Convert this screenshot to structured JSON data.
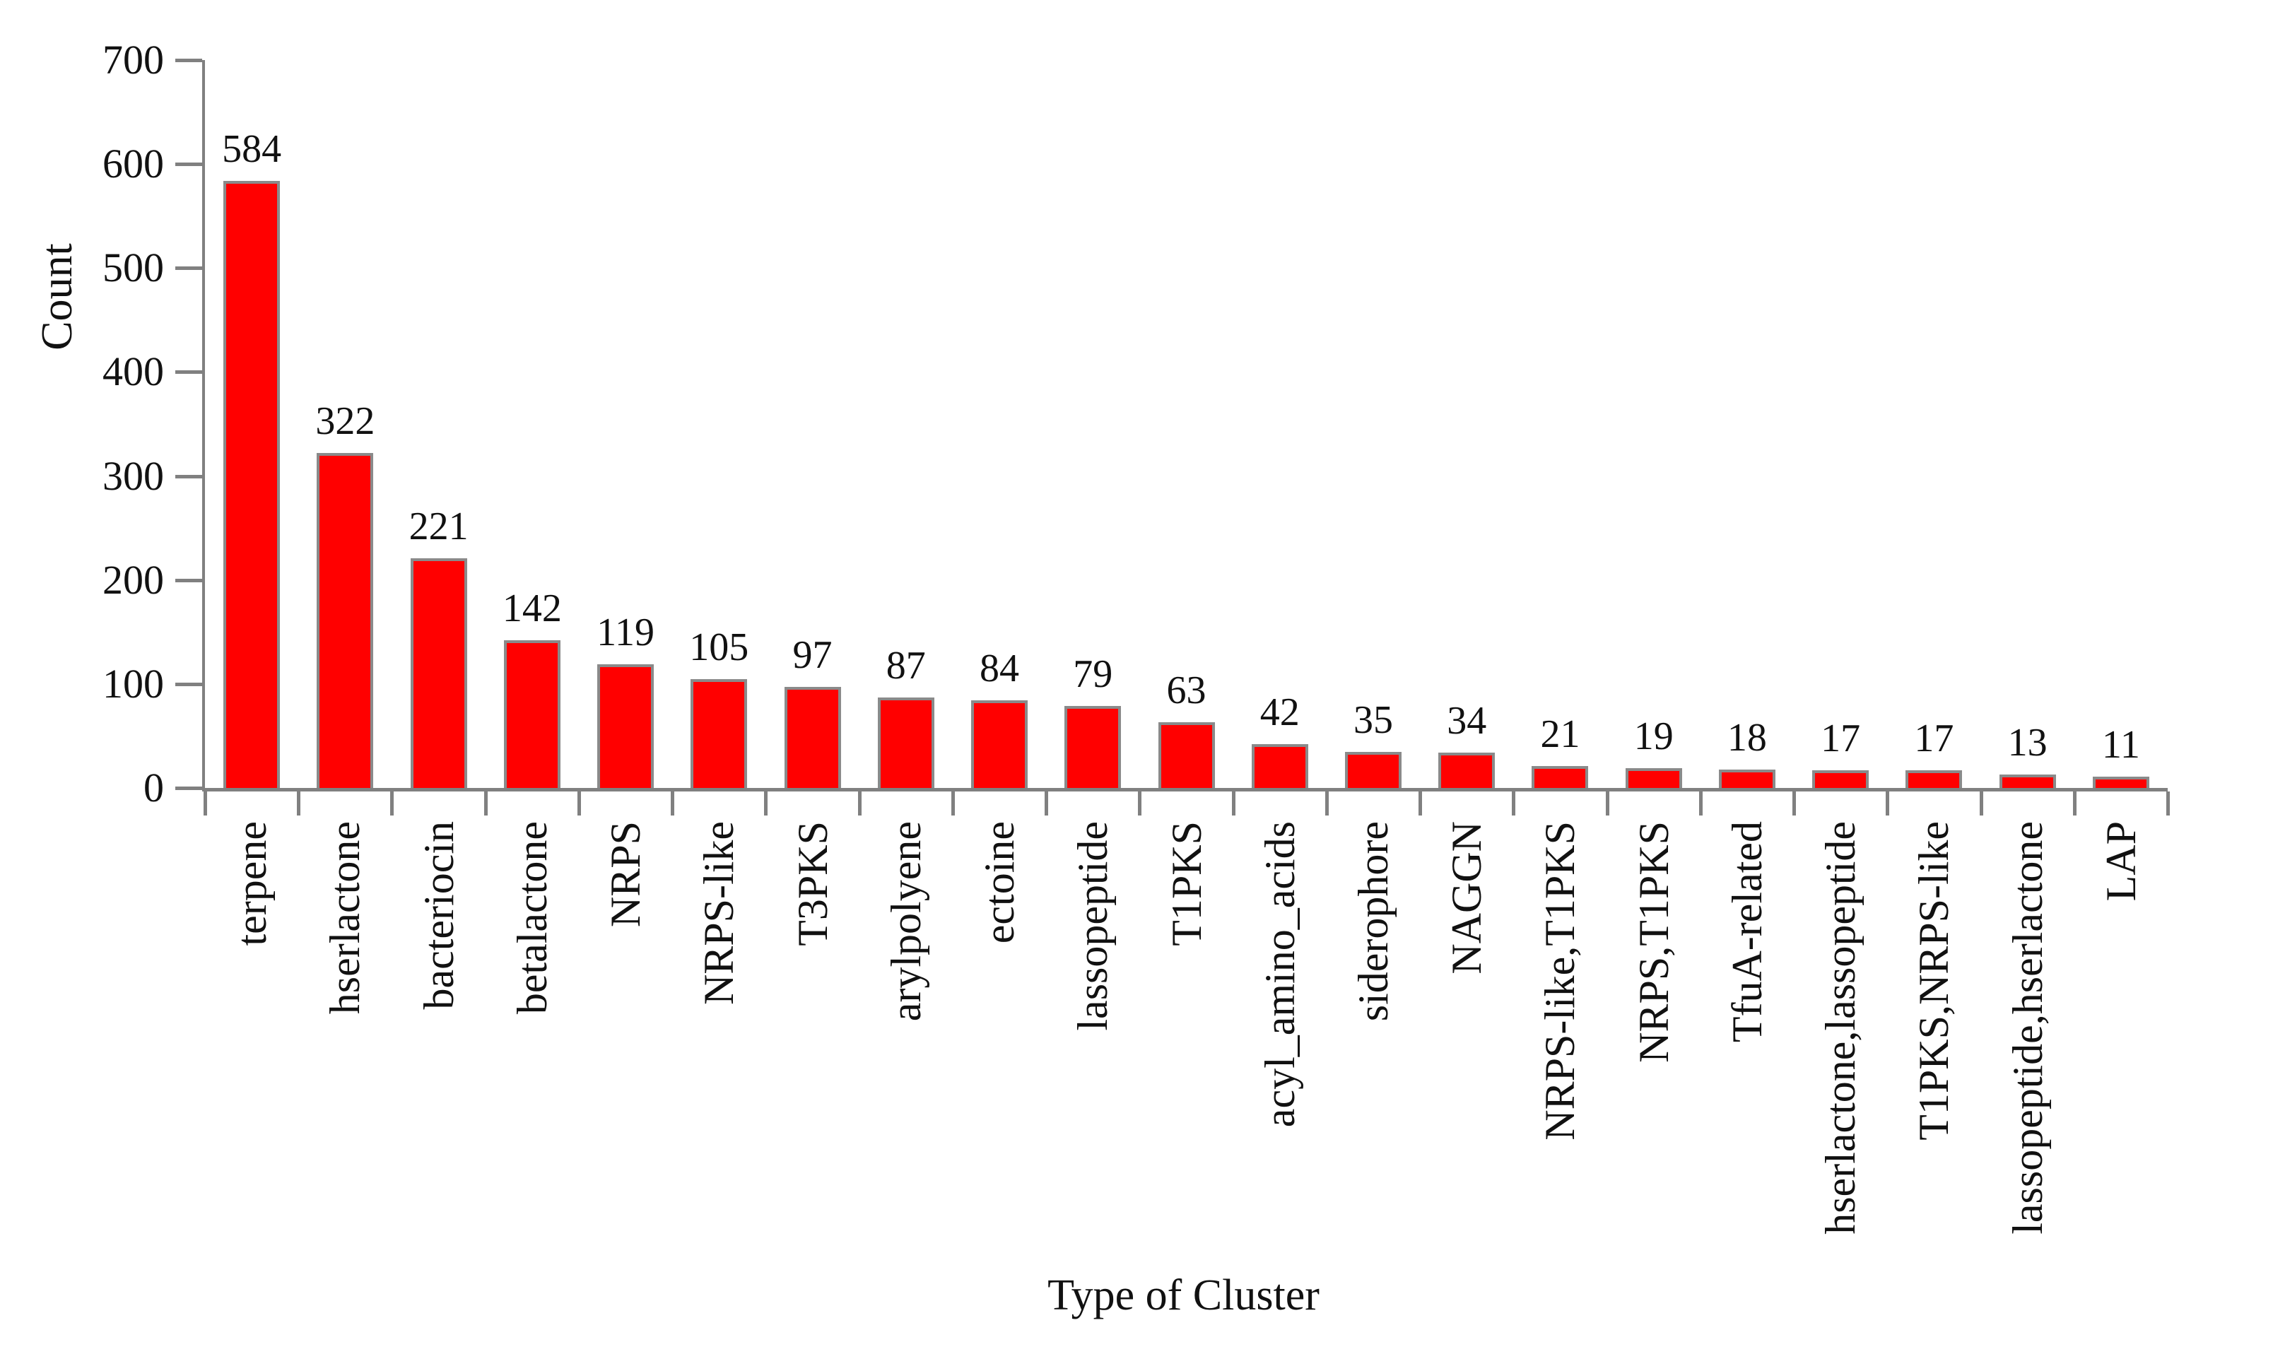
{
  "chart_data": {
    "type": "bar",
    "title": "",
    "xlabel": "Type of Cluster",
    "ylabel": "Count",
    "ylim": [
      0,
      700
    ],
    "ytick_step": 100,
    "ytick_labels": [
      "0",
      "100",
      "200",
      "300",
      "400",
      "500",
      "600",
      "700"
    ],
    "categories": [
      "terpene",
      "hserlactone",
      "bacteriocin",
      "betalactone",
      "NRPS",
      "NRPS-like",
      "T3PKS",
      "arylpolyene",
      "ectoine",
      "lassopeptide",
      "T1PKS",
      "acyl_amino_acids",
      "siderophore",
      "NAGGN",
      "NRPS-like,T1PKS",
      "NRPS,T1PKS",
      "TfuA-related",
      "hserlactone,lassopeptide",
      "T1PKS,NRPS-like",
      "lassopeptide,hserlactone",
      "LAP"
    ],
    "values": [
      584,
      322,
      221,
      142,
      119,
      105,
      97,
      87,
      84,
      79,
      63,
      42,
      35,
      34,
      21,
      19,
      18,
      17,
      17,
      13,
      11
    ],
    "bar_color": "#FF0000",
    "bar_border_color": "#8a8a8a",
    "axis_color": "#808080",
    "text_color": "#111111",
    "grid": false,
    "legend": null
  }
}
